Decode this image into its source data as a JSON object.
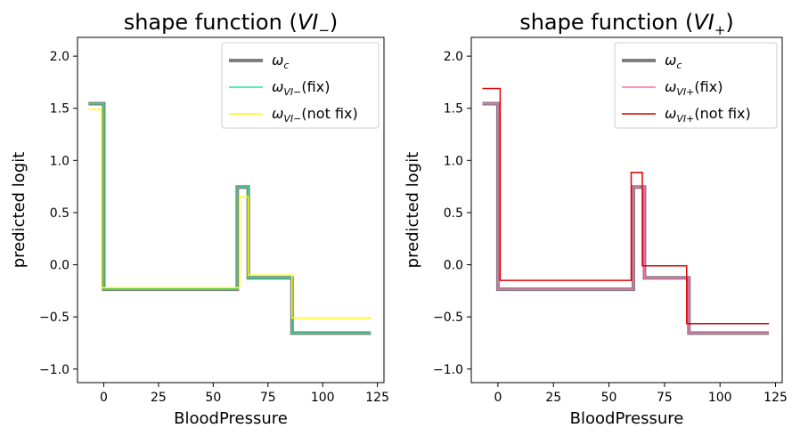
{
  "chart_data": [
    {
      "type": "line",
      "title": {
        "prefix": "shape function (",
        "var": "VI",
        "sub": "−",
        "suffix": ")"
      },
      "xlabel": "BloodPressure",
      "ylabel": "predicted logit",
      "xlim": [
        -12,
        128
      ],
      "ylim": [
        -1.13,
        2.18
      ],
      "xticks": [
        0,
        25,
        50,
        75,
        100,
        125
      ],
      "xtick_labels": [
        "0",
        "25",
        "50",
        "75",
        "100",
        "125"
      ],
      "yticks": [
        -1.0,
        -0.5,
        0.0,
        0.5,
        1.0,
        1.5,
        2.0
      ],
      "ytick_labels": [
        "−1.0",
        "−0.5",
        "0.0",
        "0.5",
        "1.0",
        "1.5",
        "2.0"
      ],
      "legend_position": "top-right",
      "series": [
        {
          "name": "ωc",
          "legend": {
            "var": "ω",
            "sub": "c",
            "suffix": ""
          },
          "color": "#7f7f7f",
          "width": 4,
          "points": [
            [
              -7,
              1.545
            ],
            [
              0,
              1.545
            ],
            [
              0,
              -0.235
            ],
            [
              61,
              -0.235
            ],
            [
              61,
              0.745
            ],
            [
              66,
              0.745
            ],
            [
              66,
              -0.125
            ],
            [
              86,
              -0.125
            ],
            [
              86,
              -0.655
            ],
            [
              122,
              -0.655
            ]
          ]
        },
        {
          "name": "ωVI−(fix)",
          "legend": {
            "var": "ω",
            "sub": "VI−",
            "suffix": "(fix)"
          },
          "color": "#1de886",
          "width": 1.5,
          "points": [
            [
              -7,
              1.545
            ],
            [
              0,
              1.545
            ],
            [
              0,
              -0.235
            ],
            [
              61,
              -0.235
            ],
            [
              61,
              0.745
            ],
            [
              66,
              0.745
            ],
            [
              66,
              -0.125
            ],
            [
              86,
              -0.125
            ],
            [
              86,
              -0.655
            ],
            [
              122,
              -0.655
            ]
          ]
        },
        {
          "name": "ωVI−(not fix)",
          "legend": {
            "var": "ω",
            "sub": "VI−",
            "suffix": "(not fix)"
          },
          "color": "#ffff00",
          "width": 1.5,
          "points": [
            [
              -7,
              1.49
            ],
            [
              -1,
              1.49
            ],
            [
              -1,
              -0.22
            ],
            [
              62,
              -0.22
            ],
            [
              62,
              0.65
            ],
            [
              66,
              0.65
            ],
            [
              66,
              -0.1
            ],
            [
              86,
              -0.1
            ],
            [
              86,
              -0.51
            ],
            [
              122,
              -0.51
            ]
          ]
        }
      ]
    },
    {
      "type": "line",
      "title": {
        "prefix": "shape function (",
        "var": "VI",
        "sub": "+",
        "suffix": ")"
      },
      "xlabel": "BloodPressure",
      "ylabel": "predicted logit",
      "xlim": [
        -12,
        128
      ],
      "ylim": [
        -1.13,
        2.18
      ],
      "xticks": [
        0,
        25,
        50,
        75,
        100,
        125
      ],
      "xtick_labels": [
        "0",
        "25",
        "50",
        "75",
        "100",
        "125"
      ],
      "yticks": [
        -1.0,
        -0.5,
        0.0,
        0.5,
        1.0,
        1.5,
        2.0
      ],
      "ytick_labels": [
        "−1.0",
        "−0.5",
        "0.0",
        "0.5",
        "1.0",
        "1.5",
        "2.0"
      ],
      "legend_position": "top-right",
      "series": [
        {
          "name": "ωc",
          "legend": {
            "var": "ω",
            "sub": "c",
            "suffix": ""
          },
          "color": "#7f7f7f",
          "width": 4,
          "points": [
            [
              -7,
              1.545
            ],
            [
              0,
              1.545
            ],
            [
              0,
              -0.235
            ],
            [
              61,
              -0.235
            ],
            [
              61,
              0.745
            ],
            [
              66,
              0.745
            ],
            [
              66,
              -0.125
            ],
            [
              86,
              -0.125
            ],
            [
              86,
              -0.655
            ],
            [
              122,
              -0.655
            ]
          ]
        },
        {
          "name": "ωVI+(fix)",
          "legend": {
            "var": "ω",
            "sub": "VI+",
            "suffix": "(fix)"
          },
          "color": "#ff69b4",
          "width": 1.5,
          "points": [
            [
              -7,
              1.545
            ],
            [
              0,
              1.545
            ],
            [
              0,
              -0.235
            ],
            [
              61,
              -0.235
            ],
            [
              61,
              0.745
            ],
            [
              66,
              0.745
            ],
            [
              66,
              -0.125
            ],
            [
              86,
              -0.125
            ],
            [
              86,
              -0.655
            ],
            [
              122,
              -0.655
            ]
          ]
        },
        {
          "name": "ωVI+(not fix)",
          "legend": {
            "var": "ω",
            "sub": "VI+",
            "suffix": "(not fix)"
          },
          "color": "#e00000",
          "width": 1.5,
          "points": [
            [
              -7,
              1.69
            ],
            [
              1,
              1.69
            ],
            [
              1,
              -0.15
            ],
            [
              60,
              -0.15
            ],
            [
              60,
              0.885
            ],
            [
              65,
              0.885
            ],
            [
              65,
              -0.01
            ],
            [
              85,
              -0.01
            ],
            [
              85,
              -0.565
            ],
            [
              122,
              -0.565
            ]
          ]
        }
      ]
    }
  ]
}
